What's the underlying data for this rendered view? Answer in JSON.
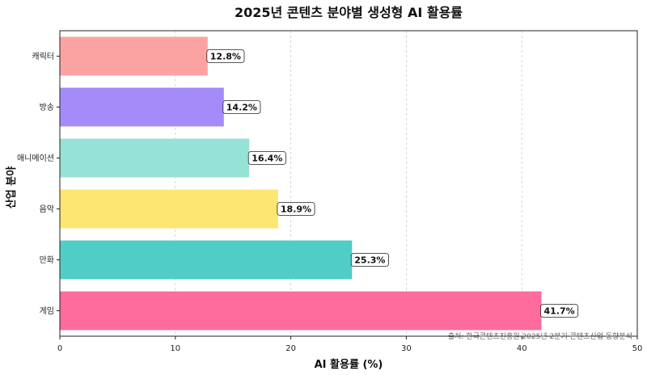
{
  "chart_data": {
    "type": "bar",
    "orientation": "horizontal",
    "title": "2025년 콘텐츠 분야별 생성형 AI 활용률",
    "xlabel": "AI 활용률 (%)",
    "ylabel": "산업 분야",
    "xlim": [
      0,
      50
    ],
    "xticks": [
      "0",
      "10",
      "20",
      "30",
      "40",
      "50"
    ],
    "grid": "vertical-dashed",
    "categories": [
      "캐릭터",
      "방송",
      "애니메이션",
      "음악",
      "만화",
      "게임"
    ],
    "values": [
      12.8,
      14.2,
      16.4,
      18.9,
      25.3,
      41.7
    ],
    "value_labels": [
      "12.8%",
      "14.2%",
      "16.4%",
      "18.9%",
      "25.3%",
      "41.7%"
    ],
    "colors": [
      "#fba3a3",
      "#a58afa",
      "#95e2d6",
      "#fde672",
      "#50cdc4",
      "#fe6b9d"
    ],
    "source_note": "출처: 한국콘텐츠진흥원 2025년 2분기 콘텐츠산업 동향분석"
  }
}
